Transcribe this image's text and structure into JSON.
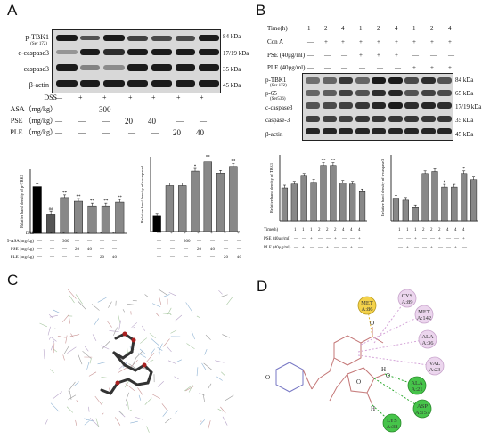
{
  "panels": {
    "A": {
      "letter": "A",
      "blot_rows": [
        {
          "label": "p-TBK1",
          "sublabel": "(Ser 172)",
          "kda": "84 kDa"
        },
        {
          "label": "c-caspase3",
          "sublabel": "",
          "kda": "17/19 kDa"
        },
        {
          "label": "caspase3",
          "sublabel": "",
          "kda": "35 kDa"
        },
        {
          "label": "β-actin",
          "sublabel": "",
          "kda": "45 kDa"
        }
      ],
      "treatments": [
        {
          "label": "DSS",
          "cells": [
            "—",
            "+",
            "+",
            "+",
            "+",
            "+",
            "+"
          ]
        },
        {
          "label": "ASA（mg/kg）",
          "cells": [
            "—",
            "—",
            "300",
            "",
            "—",
            "—",
            "—"
          ]
        },
        {
          "label": "PSE （mg/kg）",
          "cells": [
            "—",
            "—",
            "—",
            "20",
            "40",
            "—",
            "—"
          ]
        },
        {
          "label": "PLE （mg/kg）",
          "cells": [
            "—",
            "—",
            "—",
            "—",
            "—",
            "20",
            "40"
          ]
        }
      ],
      "small_treatments": [
        {
          "label": "DSS",
          "cells": [
            "—",
            "+",
            "+",
            "+",
            "+",
            "+",
            "+"
          ]
        },
        {
          "label": "5-ASA(mg/kg)",
          "cells": [
            "—",
            "—",
            "300",
            "—",
            "—",
            "—",
            "—"
          ]
        },
        {
          "label": "PSE (mg/kg)",
          "cells": [
            "—",
            "—",
            "—",
            "20",
            "40",
            "—",
            "—"
          ]
        },
        {
          "label": "PLE (mg/kg)",
          "cells": [
            "—",
            "—",
            "—",
            "—",
            "—",
            "20",
            "40"
          ]
        }
      ]
    },
    "B": {
      "letter": "B",
      "header_rows": [
        {
          "label": "Time(h)",
          "cells": [
            "1",
            "2",
            "4",
            "1",
            "2",
            "4",
            "1",
            "2",
            "4"
          ]
        },
        {
          "label": "Con A",
          "cells": [
            "—",
            "+",
            "+",
            "+",
            "+",
            "+",
            "+",
            "+",
            "+"
          ]
        },
        {
          "label": "PSE (40μg/ml)",
          "cells": [
            "—",
            "—",
            "—",
            "+",
            "+",
            "+",
            "—",
            "—",
            "—"
          ]
        },
        {
          "label": "PLE (40μg/ml)",
          "cells": [
            "—",
            "—",
            "—",
            "—",
            "—",
            "—",
            "+",
            "+",
            "+"
          ]
        }
      ],
      "blot_rows": [
        {
          "label": "p-TBK1",
          "sublabel": "(Ser 172)",
          "kda": "84 kDa"
        },
        {
          "label": "p-65",
          "sublabel": "(Ser536)",
          "kda": "65 kDa"
        },
        {
          "label": "c-caspase3",
          "sublabel": "",
          "kda": "17/19 kDa"
        },
        {
          "label": "caspase-3",
          "sublabel": "",
          "kda": "35 kDa"
        },
        {
          "label": "β-actin",
          "sublabel": "",
          "kda": "45 kDa"
        }
      ],
      "small_rows": [
        {
          "label": "Time(h)",
          "cells": [
            "1",
            "1",
            "1",
            "2",
            "2",
            "2",
            "4",
            "4",
            "4"
          ]
        },
        {
          "label": "PSE (40μg/ml)",
          "cells": [
            "—",
            "—",
            "+",
            "—",
            "—",
            "+",
            "—",
            "—",
            "+"
          ]
        },
        {
          "label": "PLE (40μg/ml)",
          "cells": [
            "—",
            "+",
            "—",
            "—",
            "+",
            "—",
            "—",
            "+",
            "—"
          ]
        }
      ]
    },
    "C": {
      "letter": "C"
    },
    "D": {
      "letter": "D",
      "residues": [
        {
          "name": "MET",
          "id": "A:86",
          "kind": "pi"
        },
        {
          "name": "CYS",
          "id": "A:89",
          "kind": "alkyl"
        },
        {
          "name": "MET",
          "id": "A:142",
          "kind": "alkyl"
        },
        {
          "name": "ALA",
          "id": "A:36",
          "kind": "alkyl"
        },
        {
          "name": "VAL",
          "id": "A:23",
          "kind": "alkyl"
        },
        {
          "name": "ALA",
          "id": "A:21",
          "kind": "hbond"
        },
        {
          "name": "ASP",
          "id": "A:157",
          "kind": "hbond"
        },
        {
          "name": "LYS",
          "id": "A:38",
          "kind": "hbond"
        }
      ],
      "atom_labels": {
        "h": "H",
        "o": "O"
      }
    }
  },
  "chart_data": [
    {
      "type": "bar",
      "panel": "A",
      "ylabel": "Relative band density of p-TBK1",
      "ylim": [
        0,
        1.4
      ],
      "values": [
        1.02,
        0.42,
        0.78,
        0.7,
        0.6,
        0.6,
        0.68
      ],
      "annotations": [
        "",
        "##",
        "**",
        "**",
        "**",
        "**",
        "**"
      ],
      "colors": [
        "#000000",
        "#555555",
        "#888888",
        "#888888",
        "#888888",
        "#888888",
        "#888888"
      ]
    },
    {
      "type": "bar",
      "panel": "A",
      "ylabel": "Relative band density of c-caspase3",
      "ylim": [
        0,
        2.2
      ],
      "values": [
        0.45,
        1.35,
        1.35,
        1.78,
        2.05,
        1.72,
        1.92
      ],
      "annotations": [
        "",
        "",
        "",
        "*",
        "**",
        "",
        "**"
      ],
      "colors": [
        "#000000",
        "#888888",
        "#888888",
        "#888888",
        "#888888",
        "#888888",
        "#888888"
      ]
    },
    {
      "type": "bar",
      "panel": "B",
      "ylabel": "Relative band density of TBK1",
      "ylim": [
        0,
        1.4
      ],
      "values": [
        0.7,
        0.78,
        0.95,
        0.82,
        1.18,
        1.18,
        0.8,
        0.78,
        0.62
      ],
      "annotations": [
        "",
        "",
        "",
        "",
        "**",
        "**",
        "",
        "",
        ""
      ],
      "colors": [
        "#888888",
        "#888888",
        "#888888",
        "#888888",
        "#888888",
        "#888888",
        "#888888",
        "#888888",
        "#888888"
      ]
    },
    {
      "type": "bar",
      "panel": "B",
      "ylabel": "Relative band density of c-caspase3",
      "ylim": [
        0,
        1.6
      ],
      "values": [
        0.55,
        0.5,
        0.32,
        1.15,
        1.2,
        0.82,
        0.82,
        1.15,
        1.0
      ],
      "annotations": [
        "",
        "",
        "",
        "",
        "",
        "*",
        "",
        "*",
        ""
      ],
      "colors": [
        "#888888",
        "#888888",
        "#888888",
        "#888888",
        "#888888",
        "#888888",
        "#888888",
        "#888888",
        "#888888"
      ]
    }
  ]
}
